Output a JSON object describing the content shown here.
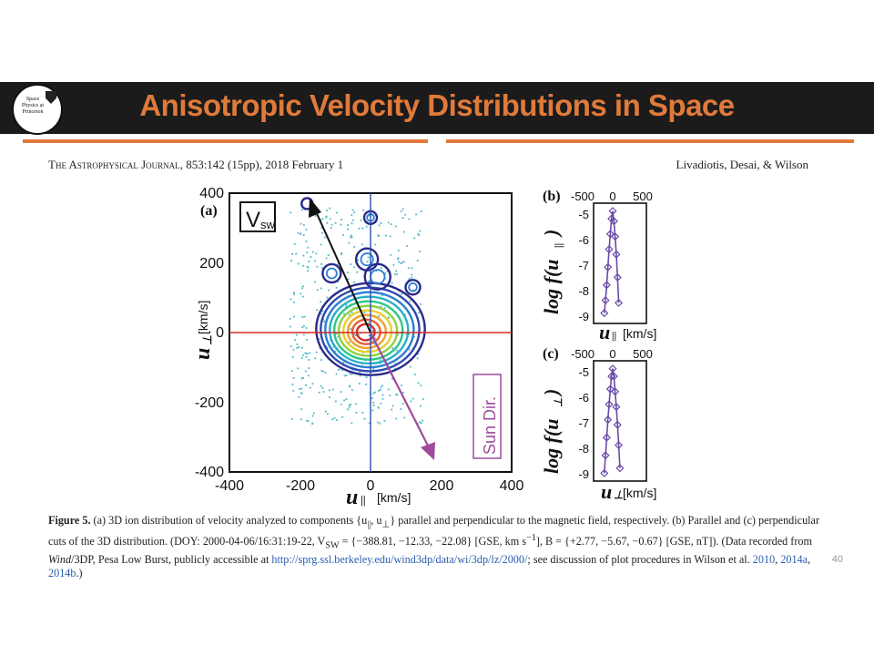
{
  "slide": {
    "title": "Anisotropic Velocity Distributions in Space",
    "logo_text": "Space Physics at Princeton",
    "page_number": "40",
    "colors": {
      "banner": "#1b1b1b",
      "accent": "#e07a3a"
    }
  },
  "paper": {
    "journal": "The Astrophysical Journal",
    "citation": ", 853:142 (15pp), 2018 February 1",
    "authors": "Livadiotis, Desai, & Wilson"
  },
  "figure": {
    "panel_a": "(a)",
    "panel_b": "(b)",
    "panel_c": "(c)",
    "vsw_label": "V",
    "vsw_sub": "sw",
    "sun_dir_label": "Sun Dir.",
    "a_xticks": [
      "-400",
      "-200",
      "0",
      "200",
      "400"
    ],
    "a_yticks": [
      "400",
      "200",
      "0",
      "-200",
      "-400"
    ],
    "a_xlabel": "u",
    "a_xlabel_sub": "||",
    "a_xunit": "[km/s]",
    "a_ylabel": "u",
    "a_ylabel_sub": "⊥",
    "a_yunit": "[km/s]",
    "small_xticks": [
      "-500",
      "0",
      "500"
    ],
    "small_yticks": [
      "-5",
      "-6",
      "-7",
      "-8",
      "-9"
    ],
    "b_ylabel": "log f(u",
    "b_ylabel_sub": "||",
    "b_ylabel_end": ")",
    "b_xlabel": "u",
    "b_xlabel_sub": "||",
    "b_xunit": "[km/s]",
    "c_ylabel": "log f(u",
    "c_ylabel_sub": "⊥",
    "c_ylabel_end": ")",
    "c_xlabel": "u",
    "c_xlabel_sub": "⊥",
    "c_xunit": "[km/s]"
  },
  "caption": {
    "label": "Figure 5.",
    "text1": " (a) 3D ion distribution of velocity analyzed to components {u",
    "text1_sub1": "||",
    "text1_mid": ", u",
    "text1_sub2": "⊥",
    "text2": "} parallel and perpendicular to the magnetic field, respectively. (b) Parallel and (c) perpendicular cuts of the 3D distribution. (DOY: 2000-04-06/16:31:19-22, V",
    "text2_sub": "SW",
    "text3": " = {−388.81, −12.33, −22.08} [GSE, km s",
    "text3_sup": "−1",
    "text4": "], B = {+2.77, −5.67, −0.67} [GSE, nT]). (Data recorded from ",
    "text4_em": "Wind",
    "text5": "/3DP, Pesa Low Burst, publicly accessible at ",
    "link": "http://sprg.ssl.berkeley.edu/wind3dp/data/wi/3dp/lz/2000/",
    "text6": "; see discussion of plot procedures in Wilson et al. ",
    "ref1": "2010",
    "text7": ", ",
    "ref2": "2014a",
    "text8": ", ",
    "ref3": "2014b",
    "text9": ".)"
  },
  "chart_data": [
    {
      "type": "heatmap",
      "panel": "(a)",
      "description_values": {
        "vsw_arrow_tip": [
          -180,
          370
        ],
        "sun_dir_arrow_tip": [
          170,
          -360
        ]
      },
      "xlim": [
        -400,
        400
      ],
      "ylim": [
        -400,
        400
      ],
      "xlabel": "u|| [km/s]",
      "ylabel": "u⊥ [km/s]",
      "core_center": [
        0,
        0
      ],
      "reference_lines": {
        "horizontal_y": 0,
        "vertical_x": 0
      }
    },
    {
      "type": "scatter",
      "panel": "(b)",
      "xlim": [
        -500,
        500
      ],
      "ylim": [
        -9,
        -4.5
      ],
      "x": [
        -140,
        -120,
        -100,
        -80,
        -60,
        -40,
        -20,
        0,
        20,
        40,
        60,
        80,
        100
      ],
      "y": [
        -8.7,
        -8.2,
        -7.6,
        -6.9,
        -6.2,
        -5.6,
        -5.0,
        -4.7,
        -5.1,
        -5.7,
        -6.4,
        -7.3,
        -8.3
      ]
    },
    {
      "type": "scatter",
      "panel": "(c)",
      "xlim": [
        -500,
        500
      ],
      "ylim": [
        -9,
        -4.5
      ],
      "x": [
        -140,
        -120,
        -100,
        -80,
        -60,
        -40,
        -20,
        0,
        20,
        40,
        60,
        80,
        100,
        120
      ],
      "y": [
        -8.8,
        -8.1,
        -7.4,
        -6.7,
        -6.1,
        -5.5,
        -5.0,
        -4.7,
        -5.0,
        -5.6,
        -6.2,
        -6.9,
        -7.7,
        -8.6
      ]
    }
  ]
}
